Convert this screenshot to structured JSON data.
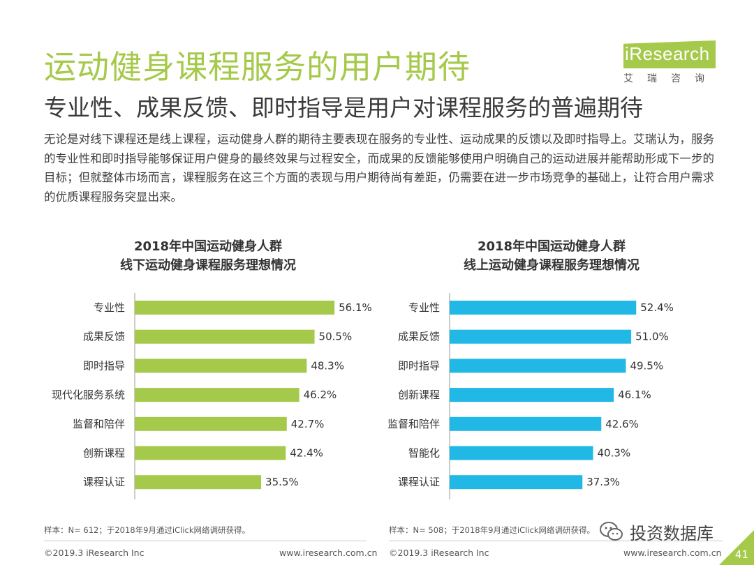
{
  "header": {
    "title": "运动健身课程服务的用户期待",
    "subtitle": "专业性、成果反馈、即时指导是用户对课程服务的普遍期待",
    "body": "无论是对线下课程还是线上课程，运动健身人群的期待主要表现在服务的专业性、运动成果的反馈以及即时指导上。艾瑞认为，服务的专业性和即时指导能够保证用户健身的最终效果与过程安全，而成果的反馈能够使用户明确自己的运动进展并能帮助形成下一步的目标；但就整体市场而言，课程服务在这三个方面的表现与用户期待尚有差距，仍需要在进一步市场竞争的基础上，让符合用户需求的优质课程服务突显出来。"
  },
  "logo": {
    "text": "iResearch",
    "cn": "艾瑞咨询"
  },
  "colors": {
    "accent": "#a5c94a",
    "offline_bar": "#a5c94a",
    "online_bar": "#21b8e6"
  },
  "chart_data": [
    {
      "type": "bar",
      "orientation": "horizontal",
      "title_line1": "2018年中国运动健身人群",
      "title_line2": "线下运动健身课程服务理想情况",
      "categories": [
        "专业性",
        "成果反馈",
        "即时指导",
        "现代化服务系统",
        "监督和陪伴",
        "创新课程",
        "课程认证"
      ],
      "values": [
        56.1,
        50.5,
        48.3,
        46.2,
        42.7,
        42.4,
        35.5
      ],
      "labels": [
        "56.1%",
        "50.5%",
        "48.3%",
        "46.2%",
        "42.7%",
        "42.4%",
        "35.5%"
      ],
      "unit": "%",
      "xlim": [
        0,
        60
      ],
      "color": "#a5c94a",
      "note": "样本：N= 612；于2018年9月通过iClick网络调研获得。"
    },
    {
      "type": "bar",
      "orientation": "horizontal",
      "title_line1": "2018年中国运动健身人群",
      "title_line2": "线上运动健身课程服务理想情况",
      "categories": [
        "专业性",
        "成果反馈",
        "即时指导",
        "创新课程",
        "监督和陪伴",
        "智能化",
        "课程认证"
      ],
      "values": [
        52.4,
        51.0,
        49.5,
        46.1,
        42.6,
        40.3,
        37.3
      ],
      "labels": [
        "52.4%",
        "51.0%",
        "49.5%",
        "46.1%",
        "42.6%",
        "40.3%",
        "37.3%"
      ],
      "unit": "%",
      "xlim": [
        0,
        60
      ],
      "color": "#21b8e6",
      "note": "样本：N= 508；于2018年9月通过iClick网络调研获得。"
    }
  ],
  "footer": {
    "left_copyright": "©2019.3  iResearch Inc",
    "left_url": "www.iresearch.com.cn",
    "right_copyright": "©2019.3  iResearch Inc",
    "right_url": "www.iresearch.com.cn",
    "watermark": "投资数据库",
    "watermark_icon": "wechat-icon",
    "page_number": "41"
  }
}
